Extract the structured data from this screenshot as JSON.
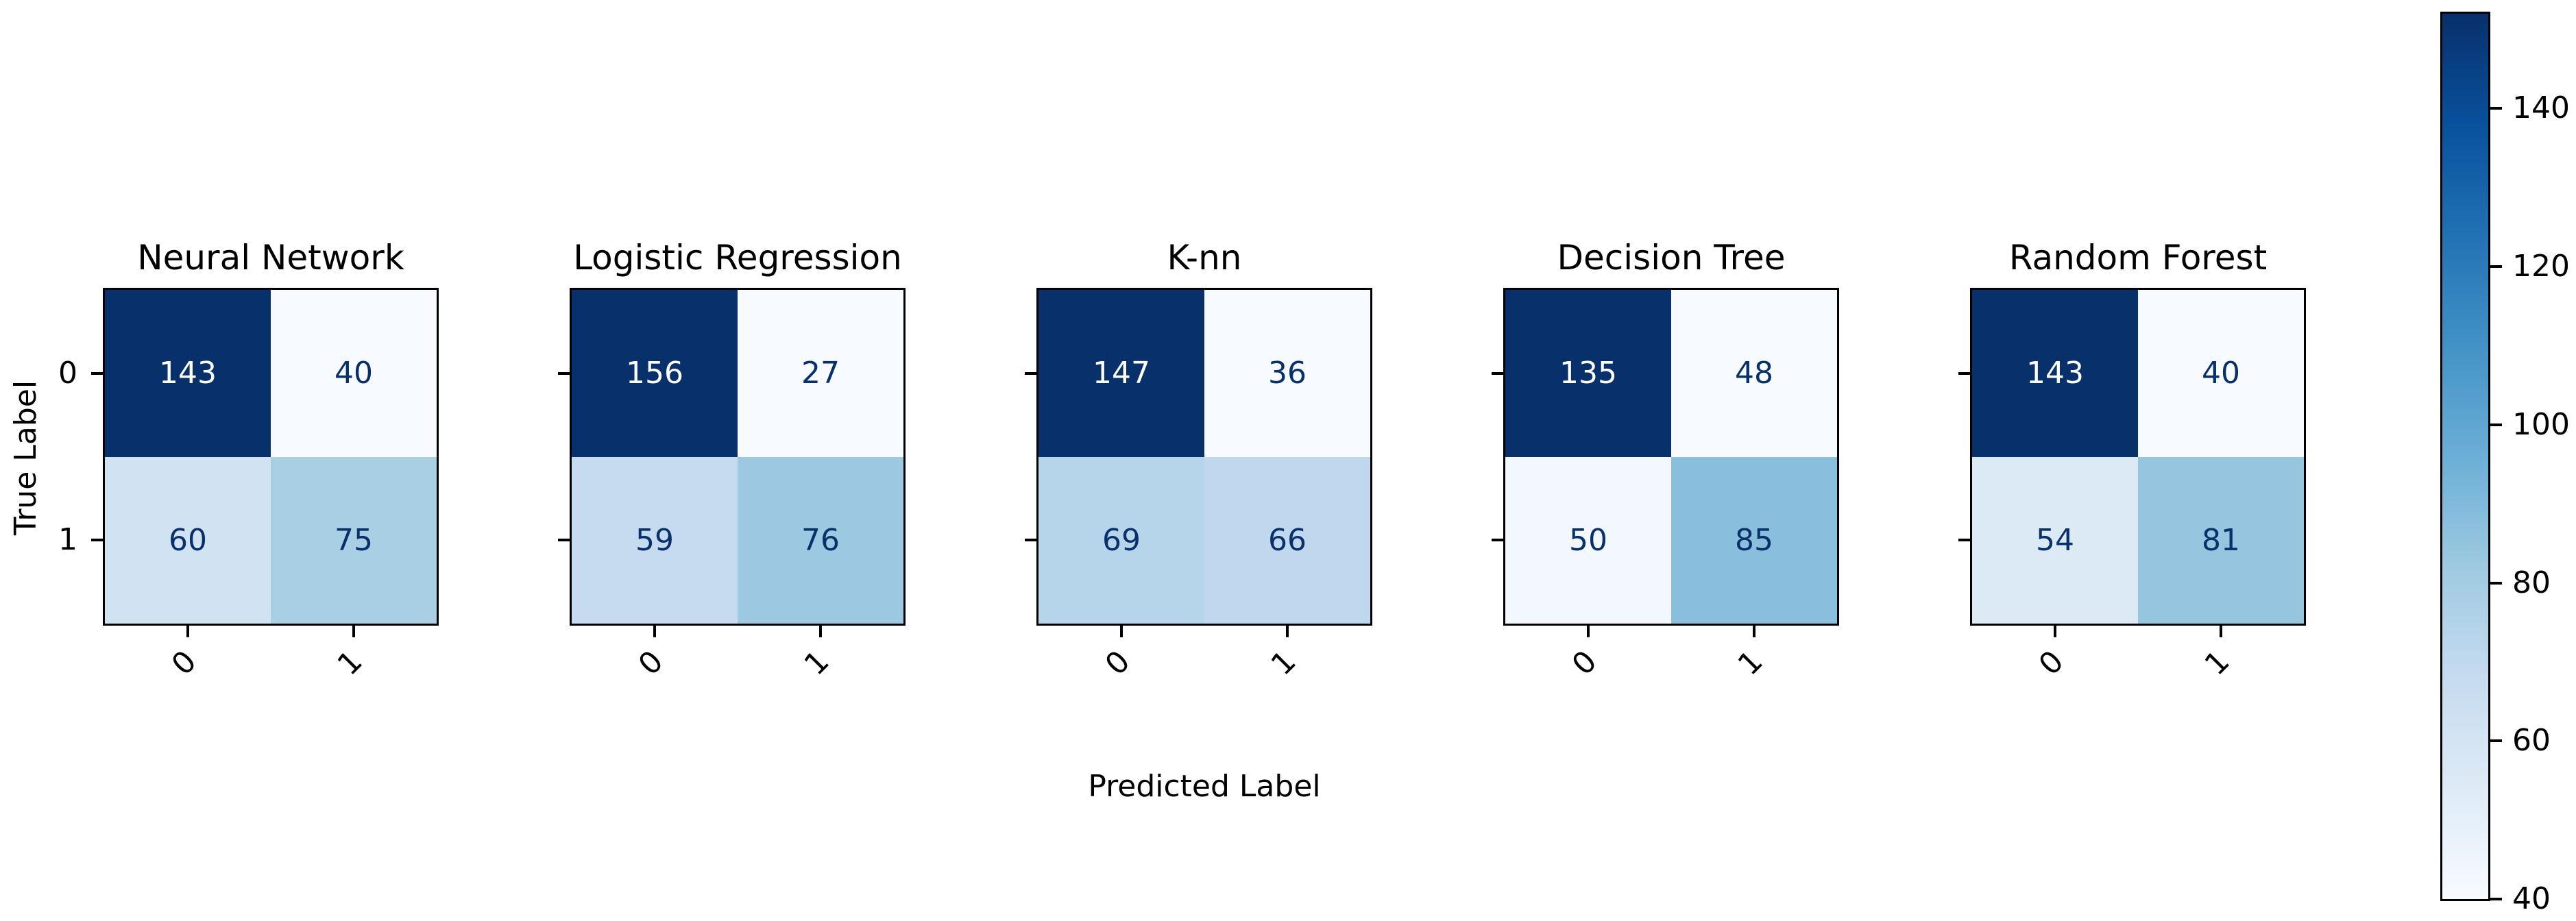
{
  "chart_data": {
    "type": "heatmap",
    "subtype": "confusion-matrix-grid",
    "xlabel": "Predicted Label",
    "ylabel": "True Label",
    "x_ticklabels": [
      "0",
      "1"
    ],
    "y_ticklabels": [
      "0",
      "1"
    ],
    "x_tick_rotation_deg": 45,
    "colormap": "Blues",
    "normalization": "per-matrix min-max",
    "grid": false,
    "matrices": [
      {
        "title": "Neural Network",
        "values": [
          [
            143,
            40
          ],
          [
            60,
            75
          ]
        ]
      },
      {
        "title": "Logistic Regression",
        "values": [
          [
            156,
            27
          ],
          [
            59,
            76
          ]
        ]
      },
      {
        "title": "K-nn",
        "values": [
          [
            147,
            36
          ],
          [
            69,
            66
          ]
        ]
      },
      {
        "title": "Decision Tree",
        "values": [
          [
            135,
            48
          ],
          [
            50,
            85
          ]
        ]
      },
      {
        "title": "Random Forest",
        "values": [
          [
            143,
            40
          ],
          [
            54,
            81
          ]
        ]
      }
    ],
    "colorbar": {
      "vmin": 40,
      "vmax": 152,
      "ticks": [
        40,
        60,
        80,
        100,
        120,
        140
      ],
      "position": "right"
    },
    "colors": {
      "blues_stops": [
        "#f7fbff",
        "#deebf7",
        "#c6dbef",
        "#9ecae1",
        "#6baed6",
        "#4292c6",
        "#2171b5",
        "#08519c",
        "#08306b"
      ],
      "dark_text": "#08306b",
      "light_text": "#ffffff",
      "axis": "#000000",
      "background": "#ffffff"
    }
  }
}
